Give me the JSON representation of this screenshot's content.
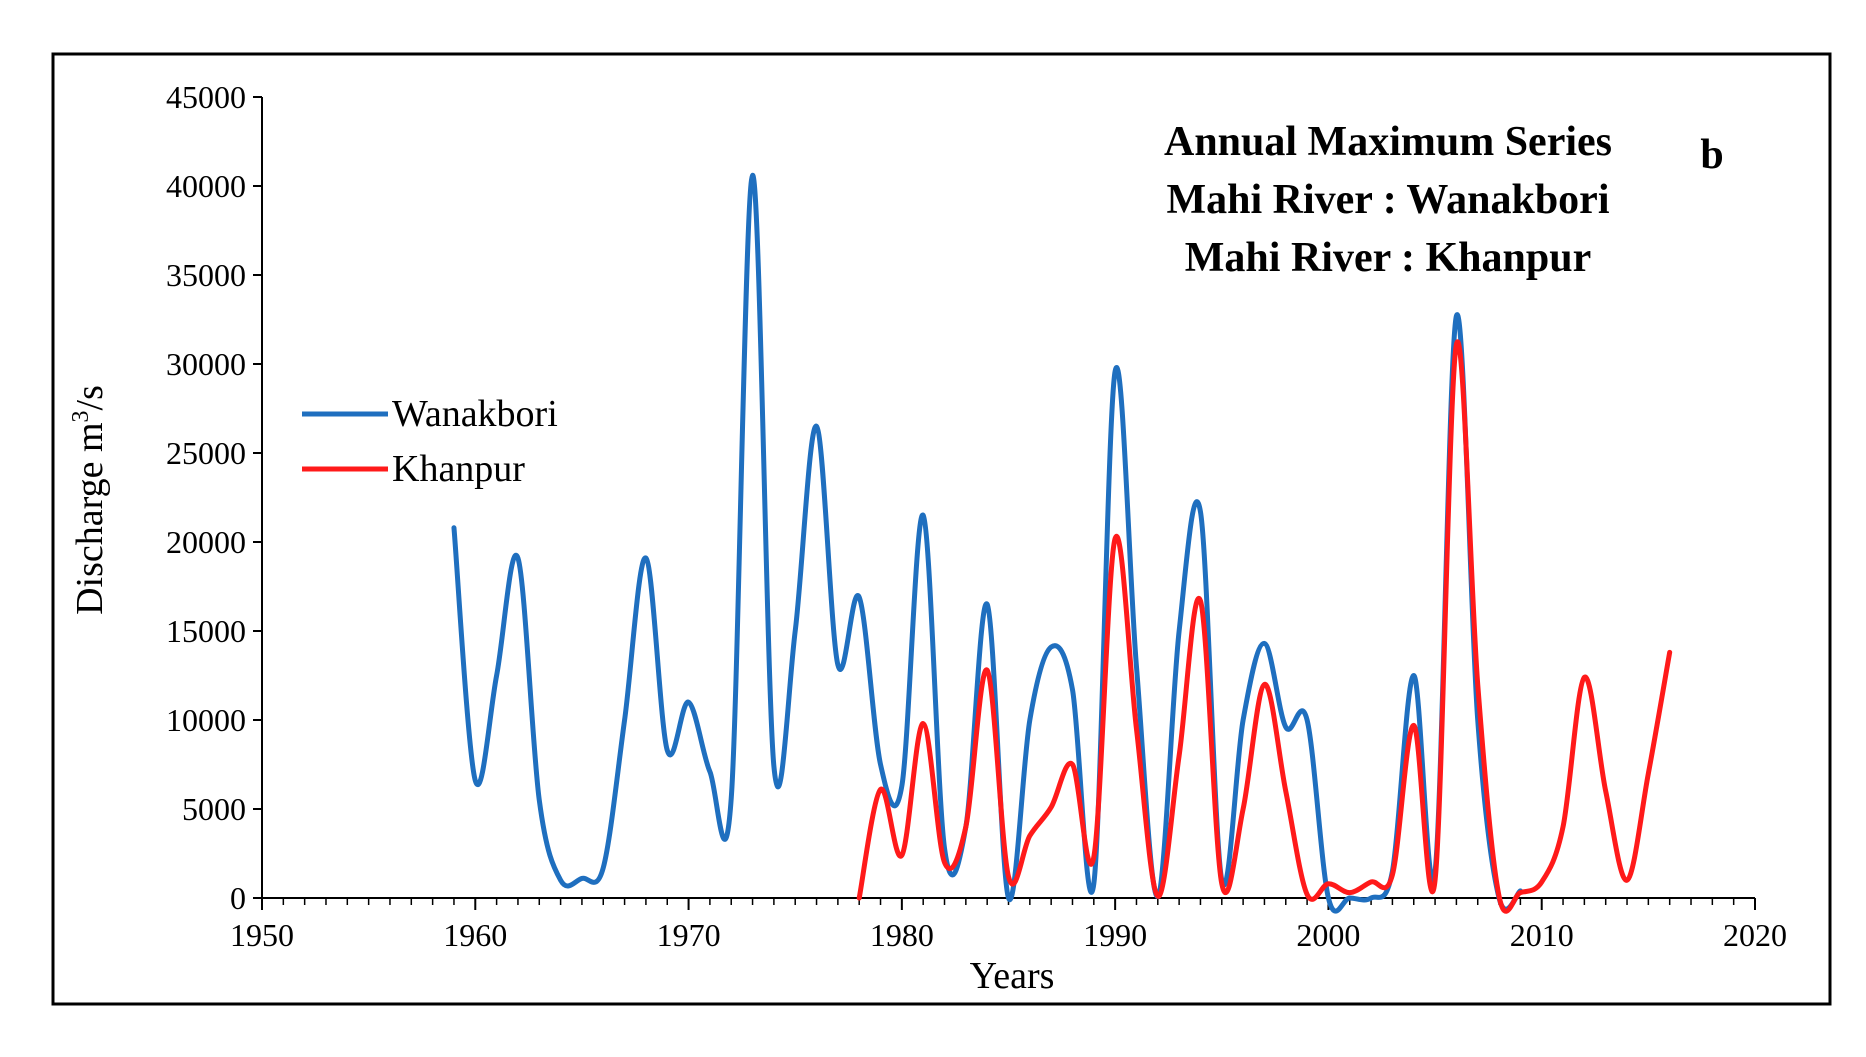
{
  "chart_data": {
    "type": "line",
    "title_lines": [
      "Annual Maximum Series",
      "Mahi River : Wanakbori",
      "Mahi River : Khanpur"
    ],
    "panel_label": "b",
    "xlabel": "Years",
    "ylabel": "Discharge m",
    "ylabel_sup": "3",
    "ylabel_suffix": "/s",
    "xlim": [
      1950,
      2020
    ],
    "ylim": [
      0,
      45000
    ],
    "x_ticks": [
      "1950",
      "1960",
      "1970",
      "1980",
      "1990",
      "2000",
      "2010",
      "2020"
    ],
    "y_ticks": [
      "0",
      "5000",
      "10000",
      "15000",
      "20000",
      "25000",
      "30000",
      "35000",
      "40000",
      "45000"
    ],
    "legend_position": "left-middle",
    "series": [
      {
        "name": "Wanakbori",
        "color": "#1F6FBF",
        "x": [
          1959,
          1960,
          1961,
          1962,
          1963,
          1964,
          1965,
          1966,
          1967,
          1968,
          1969,
          1970,
          1971,
          1972,
          1973,
          1974,
          1975,
          1976,
          1977,
          1978,
          1979,
          1980,
          1981,
          1982,
          1983,
          1984,
          1985,
          1986,
          1987,
          1988,
          1989,
          1990,
          1991,
          1992,
          1993,
          1994,
          1995,
          1996,
          1997,
          1998,
          1999,
          2000,
          2001,
          2002,
          2003,
          2004,
          2005,
          2006,
          2007,
          2008,
          2009
        ],
        "y": [
          20800,
          6600,
          12500,
          19100,
          5500,
          1000,
          1100,
          1700,
          10000,
          19100,
          8300,
          11000,
          7100,
          5600,
          40600,
          7400,
          15000,
          26500,
          13100,
          16900,
          7500,
          6300,
          21500,
          2800,
          4000,
          16500,
          0,
          10000,
          14100,
          11700,
          800,
          29600,
          13000,
          100,
          15000,
          21700,
          1000,
          10000,
          14300,
          9600,
          10000,
          0,
          0,
          0,
          1500,
          12500,
          1500,
          32700,
          10000,
          0,
          400
        ]
      },
      {
        "name": "Khanpur",
        "color": "#FF1A1A",
        "x": [
          1978,
          1979,
          1980,
          1981,
          1982,
          1983,
          1984,
          1985,
          1986,
          1987,
          1988,
          1989,
          1990,
          1991,
          1992,
          1993,
          1994,
          1995,
          1996,
          1997,
          1998,
          1999,
          2000,
          2001,
          2002,
          2003,
          2004,
          2005,
          2006,
          2007,
          2008,
          2009,
          2010,
          2011,
          2012,
          2013,
          2014,
          2015,
          2016
        ],
        "y": [
          0,
          6100,
          2400,
          9800,
          2000,
          4000,
          12800,
          1200,
          3500,
          5100,
          7500,
          2300,
          20200,
          9500,
          100,
          8000,
          16700,
          800,
          5000,
          12000,
          6000,
          200,
          800,
          300,
          900,
          1300,
          9700,
          1000,
          31100,
          12000,
          100,
          300,
          900,
          4000,
          12400,
          6000,
          1000,
          7000,
          13800
        ]
      }
    ]
  }
}
